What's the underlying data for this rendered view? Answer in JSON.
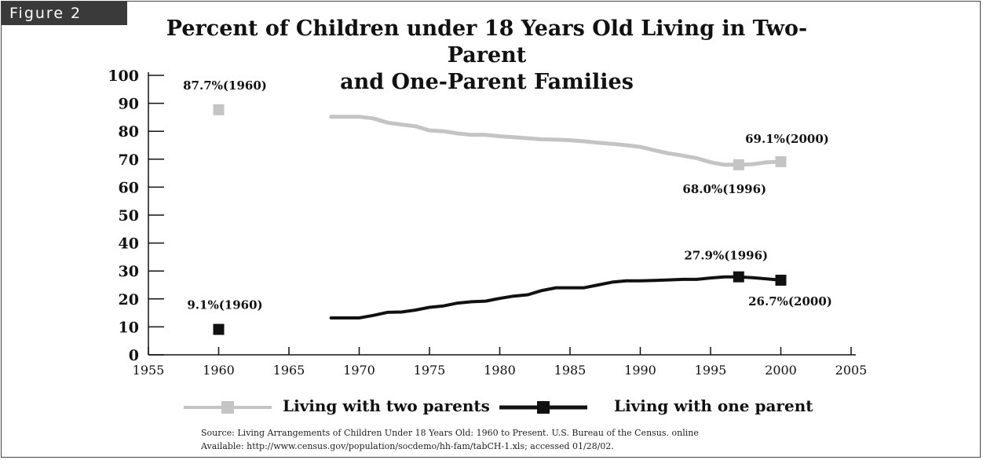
{
  "figure_tag": "Figure 2",
  "title_line1": "Percent of Children under 18 Years Old Living in Two-Parent",
  "title_line2": "and One-Parent Families",
  "legend": {
    "two_parents": "Living with two parents",
    "one_parent": "Living with one parent"
  },
  "source_line1": "Source: Living Arrangements of Children Under 18 Years Old: 1960 to Present. U.S. Bureau of the Census. online",
  "source_line2": "Available: http://www.census.gov/population/socdemo/hh-fam/tabCH-1.xls; accessed 01/28/02.",
  "colors": {
    "two_parents": "#c4c4c4",
    "one_parent": "#111111"
  },
  "chart_data": {
    "type": "line",
    "title": "Percent of Children under 18 Years Old Living in Two-Parent and One-Parent Families",
    "xlim": [
      1955,
      2005
    ],
    "ylim": [
      0,
      100
    ],
    "x_ticks": [
      1955,
      1960,
      1965,
      1970,
      1975,
      1980,
      1985,
      1990,
      1995,
      2000,
      2005
    ],
    "y_ticks": [
      0,
      10,
      20,
      30,
      40,
      50,
      60,
      70,
      80,
      90,
      100
    ],
    "grid": false,
    "legend_position": "bottom",
    "series": [
      {
        "name": "Living with two parents",
        "isolated_point": {
          "x": 1960,
          "y": 87.7
        },
        "x": [
          1968,
          1970,
          1971,
          1972,
          1973,
          1974,
          1975,
          1976,
          1977,
          1978,
          1979,
          1980,
          1981,
          1982,
          1983,
          1984,
          1985,
          1986,
          1987,
          1988,
          1989,
          1990,
          1991,
          1992,
          1993,
          1994,
          1995,
          1996,
          1997,
          1998,
          1999,
          2000
        ],
        "y": [
          85.2,
          85.2,
          84.6,
          83.1,
          82.4,
          81.8,
          80.3,
          80.0,
          79.2,
          78.7,
          78.7,
          78.2,
          77.9,
          77.5,
          77.1,
          77.0,
          76.8,
          76.4,
          75.9,
          75.5,
          75.0,
          74.4,
          73.2,
          72.1,
          71.3,
          70.4,
          68.9,
          68.0,
          68.0,
          68.2,
          68.9,
          69.1
        ],
        "annotations": [
          {
            "x": 1960,
            "y": 87.7,
            "text": "87.7%(1960)"
          },
          {
            "x": 1996,
            "y": 68.0,
            "text": "68.0%(1996)"
          },
          {
            "x": 2000,
            "y": 69.1,
            "text": "69.1%(2000)"
          }
        ]
      },
      {
        "name": "Living with one parent",
        "isolated_point": {
          "x": 1960,
          "y": 9.1
        },
        "x": [
          1968,
          1970,
          1971,
          1972,
          1973,
          1974,
          1975,
          1976,
          1977,
          1978,
          1979,
          1980,
          1981,
          1982,
          1983,
          1984,
          1985,
          1986,
          1987,
          1988,
          1989,
          1990,
          1991,
          1992,
          1993,
          1994,
          1995,
          1996,
          1997,
          1998,
          1999,
          2000
        ],
        "y": [
          13.2,
          13.2,
          14.1,
          15.2,
          15.3,
          16.0,
          17.0,
          17.5,
          18.5,
          19.0,
          19.2,
          20.2,
          21.0,
          21.5,
          23.0,
          24.0,
          24.0,
          24.0,
          25.0,
          26.0,
          26.5,
          26.5,
          26.6,
          26.8,
          27.0,
          27.0,
          27.5,
          27.9,
          27.9,
          27.6,
          27.2,
          26.7
        ],
        "annotations": [
          {
            "x": 1960,
            "y": 9.1,
            "text": "9.1%(1960)"
          },
          {
            "x": 1996,
            "y": 27.9,
            "text": "27.9%(1996)"
          },
          {
            "x": 2000,
            "y": 26.7,
            "text": "26.7%(2000)"
          }
        ]
      }
    ]
  }
}
